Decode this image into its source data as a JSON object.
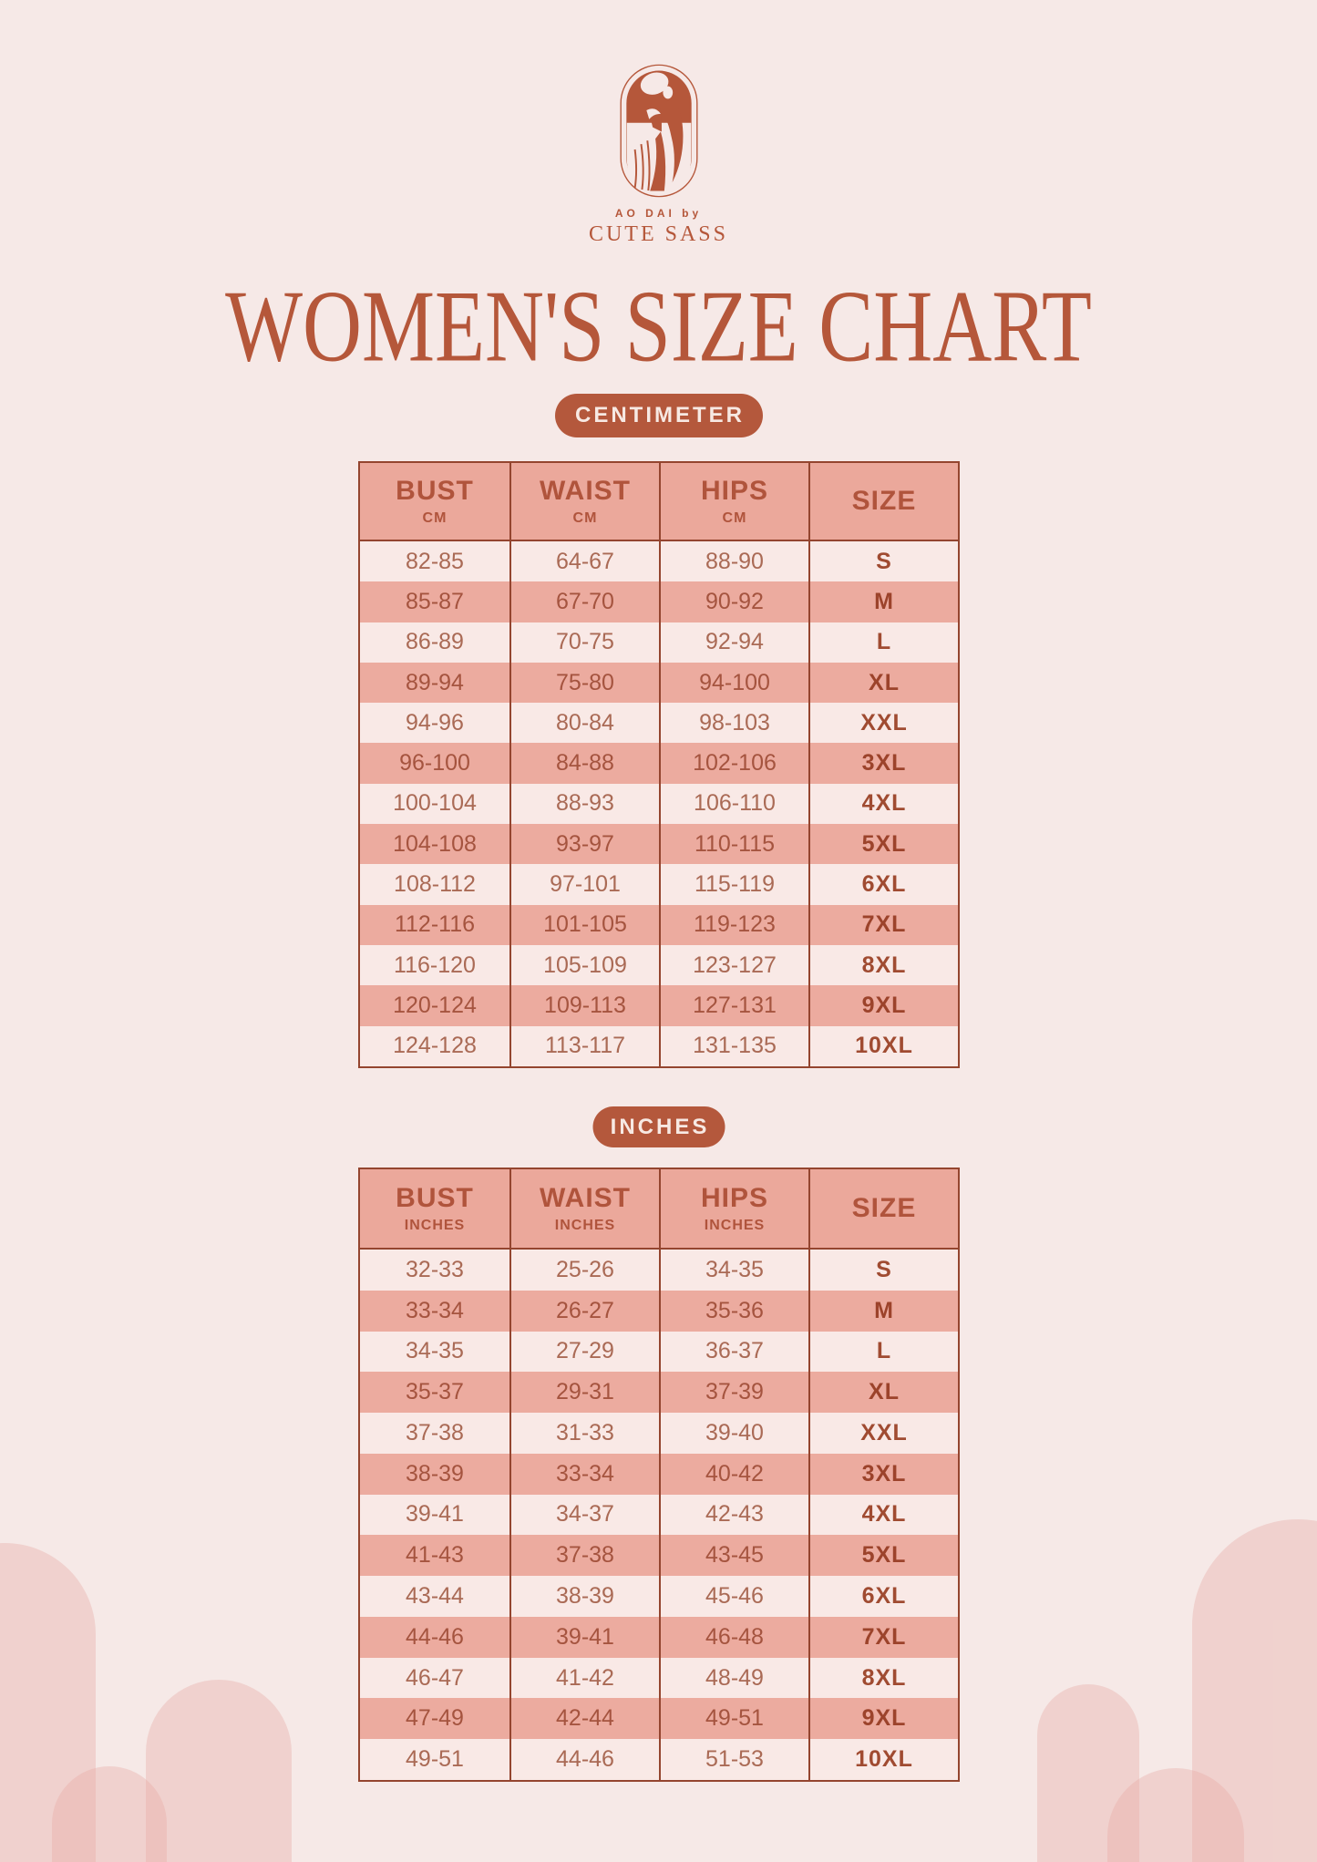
{
  "brand": {
    "logo_icon": "ao-dai-woman-capsule",
    "tagline": "AO DAI by",
    "name": "CUTE SASS"
  },
  "title": "WOMEN'S SIZE CHART",
  "sections": [
    {
      "badge": "CENTIMETER",
      "columns": [
        {
          "label": "BUST",
          "unit": "CM"
        },
        {
          "label": "WAIST",
          "unit": "CM"
        },
        {
          "label": "HIPS",
          "unit": "CM"
        },
        {
          "label": "SIZE",
          "unit": ""
        }
      ],
      "rows": [
        [
          "82-85",
          "64-67",
          "88-90",
          "S"
        ],
        [
          "85-87",
          "67-70",
          "90-92",
          "M"
        ],
        [
          "86-89",
          "70-75",
          "92-94",
          "L"
        ],
        [
          "89-94",
          "75-80",
          "94-100",
          "XL"
        ],
        [
          "94-96",
          "80-84",
          "98-103",
          "XXL"
        ],
        [
          "96-100",
          "84-88",
          "102-106",
          "3XL"
        ],
        [
          "100-104",
          "88-93",
          "106-110",
          "4XL"
        ],
        [
          "104-108",
          "93-97",
          "110-115",
          "5XL"
        ],
        [
          "108-112",
          "97-101",
          "115-119",
          "6XL"
        ],
        [
          "112-116",
          "101-105",
          "119-123",
          "7XL"
        ],
        [
          "116-120",
          "105-109",
          "123-127",
          "8XL"
        ],
        [
          "120-124",
          "109-113",
          "127-131",
          "9XL"
        ],
        [
          "124-128",
          "113-117",
          "131-135",
          "10XL"
        ]
      ]
    },
    {
      "badge": "INCHES",
      "columns": [
        {
          "label": "BUST",
          "unit": "INCHES"
        },
        {
          "label": "WAIST",
          "unit": "INCHES"
        },
        {
          "label": "HIPS",
          "unit": "INCHES"
        },
        {
          "label": "SIZE",
          "unit": ""
        }
      ],
      "rows": [
        [
          "32-33",
          "25-26",
          "34-35",
          "S"
        ],
        [
          "33-34",
          "26-27",
          "35-36",
          "M"
        ],
        [
          "34-35",
          "27-29",
          "36-37",
          "L"
        ],
        [
          "35-37",
          "29-31",
          "37-39",
          "XL"
        ],
        [
          "37-38",
          "31-33",
          "39-40",
          "XXL"
        ],
        [
          "38-39",
          "33-34",
          "40-42",
          "3XL"
        ],
        [
          "39-41",
          "34-37",
          "42-43",
          "4XL"
        ],
        [
          "41-43",
          "37-38",
          "43-45",
          "5XL"
        ],
        [
          "43-44",
          "38-39",
          "45-46",
          "6XL"
        ],
        [
          "44-46",
          "39-41",
          "46-48",
          "7XL"
        ],
        [
          "46-47",
          "41-42",
          "48-49",
          "8XL"
        ],
        [
          "47-49",
          "42-44",
          "49-51",
          "9XL"
        ],
        [
          "49-51",
          "44-46",
          "51-53",
          "10XL"
        ]
      ]
    }
  ],
  "colors": {
    "background": "#f6e9e7",
    "terracotta": "#b5573a",
    "table_border": "#94452f",
    "header_fill": "#eba89b",
    "row_light": "#f9e9e6",
    "row_dark": "#ecab9f",
    "pill_text": "#f7e9e3",
    "arch_fill": "rgba(231,172,165,0.38)"
  }
}
